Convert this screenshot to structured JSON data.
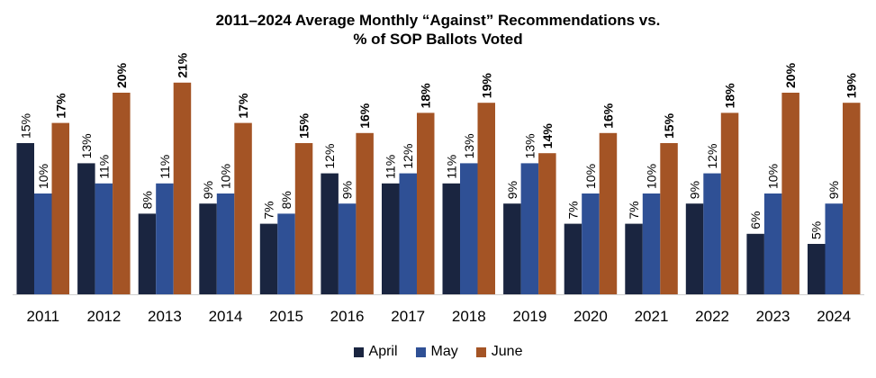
{
  "chart_data": {
    "type": "bar",
    "title_line1": "2011–2024 Average Monthly “Against” Recommendations vs.",
    "title_line2": "% of SOP Ballots Voted",
    "categories": [
      "2011",
      "2012",
      "2013",
      "2014",
      "2015",
      "2016",
      "2017",
      "2018",
      "2019",
      "2020",
      "2021",
      "2022",
      "2023",
      "2024"
    ],
    "series": [
      {
        "name": "April",
        "color": "#1a2540",
        "bold_labels": false,
        "values": [
          15,
          13,
          8,
          9,
          7,
          12,
          11,
          11,
          9,
          7,
          7,
          9,
          6,
          5
        ],
        "labels": [
          "15%",
          "13%",
          "8%",
          "9%",
          "7%",
          "12%",
          "11%",
          "11%",
          "9%",
          "7%",
          "7%",
          "9%",
          "6%",
          "5%"
        ]
      },
      {
        "name": "May",
        "color": "#2f5095",
        "bold_labels": false,
        "values": [
          10,
          11,
          11,
          10,
          8,
          9,
          12,
          13,
          13,
          10,
          10,
          12,
          10,
          9
        ],
        "labels": [
          "10%",
          "11%",
          "11%",
          "10%",
          "8%",
          "9%",
          "12%",
          "13%",
          "13%",
          "10%",
          "10%",
          "12%",
          "10%",
          "9%"
        ]
      },
      {
        "name": "June",
        "color": "#a45425",
        "bold_labels": true,
        "values": [
          17,
          20,
          21,
          17,
          15,
          16,
          18,
          19,
          14,
          16,
          15,
          18,
          20,
          19
        ],
        "labels": [
          "17%",
          "20%",
          "21%",
          "17%",
          "15%",
          "16%",
          "18%",
          "19%",
          "14%",
          "16%",
          "15%",
          "18%",
          "20%",
          "19%"
        ]
      }
    ],
    "xlabel": "",
    "ylabel": "",
    "ylim": [
      0,
      21
    ],
    "grid": false,
    "legend_position": "bottom"
  }
}
